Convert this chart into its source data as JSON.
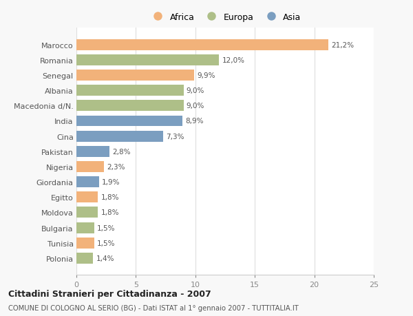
{
  "countries": [
    "Marocco",
    "Romania",
    "Senegal",
    "Albania",
    "Macedonia d/N.",
    "India",
    "Cina",
    "Pakistan",
    "Nigeria",
    "Giordania",
    "Egitto",
    "Moldova",
    "Bulgaria",
    "Tunisia",
    "Polonia"
  ],
  "values": [
    21.2,
    12.0,
    9.9,
    9.0,
    9.0,
    8.9,
    7.3,
    2.8,
    2.3,
    1.9,
    1.8,
    1.8,
    1.5,
    1.5,
    1.4
  ],
  "labels": [
    "21,2%",
    "12,0%",
    "9,9%",
    "9,0%",
    "9,0%",
    "8,9%",
    "7,3%",
    "2,8%",
    "2,3%",
    "1,9%",
    "1,8%",
    "1,8%",
    "1,5%",
    "1,5%",
    "1,4%"
  ],
  "continents": [
    "Africa",
    "Europa",
    "Africa",
    "Europa",
    "Europa",
    "Asia",
    "Asia",
    "Asia",
    "Africa",
    "Asia",
    "Africa",
    "Europa",
    "Europa",
    "Africa",
    "Europa"
  ],
  "colors": {
    "Africa": "#F2B27A",
    "Europa": "#AEBF88",
    "Asia": "#7B9EC0"
  },
  "legend": [
    "Africa",
    "Europa",
    "Asia"
  ],
  "title": "Cittadini Stranieri per Cittadinanza - 2007",
  "subtitle": "COMUNE DI COLOGNO AL SERIO (BG) - Dati ISTAT al 1° gennaio 2007 - TUTTITALIA.IT",
  "xlim": [
    0,
    25
  ],
  "xticks": [
    0,
    5,
    10,
    15,
    20,
    25
  ],
  "background_color": "#f8f8f8",
  "plot_bg_color": "#ffffff"
}
